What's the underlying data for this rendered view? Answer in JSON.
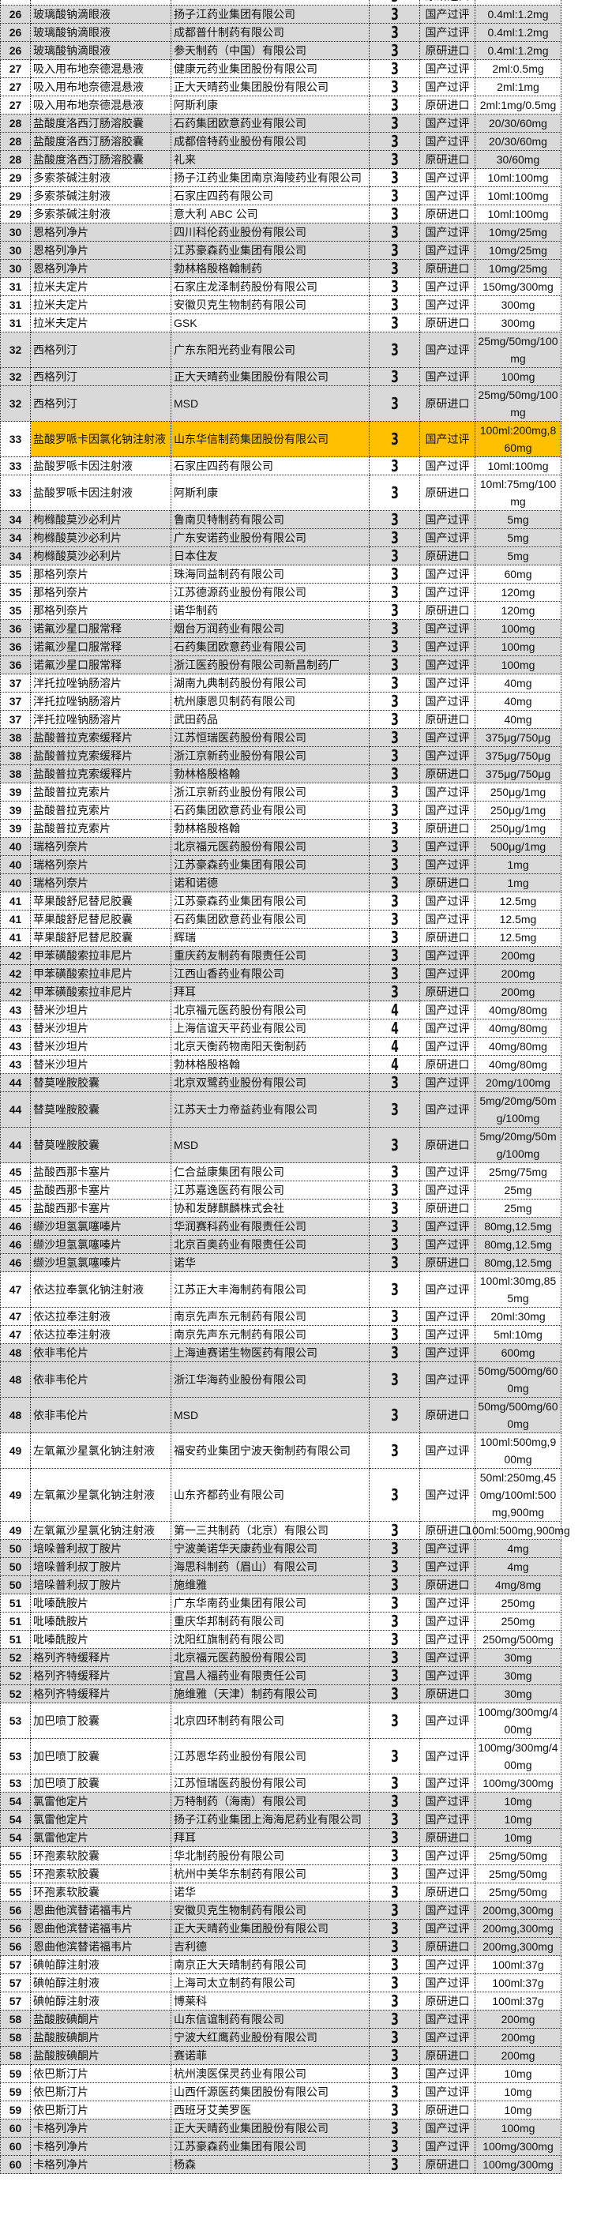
{
  "colors": {
    "gray_row": "#d9d9d9",
    "white_row": "#ffffff",
    "highlight": "#ffc000"
  },
  "rows": [
    {
      "num": "",
      "name": "",
      "company": "",
      "grade": "3",
      "type": "原研进口",
      "spec": ""
    },
    {
      "num": "26",
      "name": "玻璃酸钠滴眼液",
      "company": "扬子江药业集团有限公司",
      "grade": "3",
      "type": "国产过评",
      "spec": "0.4ml:1.2mg"
    },
    {
      "num": "26",
      "name": "玻璃酸钠滴眼液",
      "company": "成都普什制药有限公司",
      "grade": "3",
      "type": "国产过评",
      "spec": "0.4ml:1.2mg"
    },
    {
      "num": "26",
      "name": "玻璃酸钠滴眼液",
      "company": "参天制药（中国）有限公司",
      "grade": "3",
      "type": "原研进口",
      "spec": "0.4ml:1.2mg"
    },
    {
      "num": "27",
      "name": "吸入用布地奈德混悬液",
      "company": "健康元药业集团股份有限公司",
      "grade": "3",
      "type": "国产过评",
      "spec": "2ml:0.5mg"
    },
    {
      "num": "27",
      "name": "吸入用布地奈德混悬液",
      "company": "正大天晴药业集团股份有限公司",
      "grade": "3",
      "type": "国产过评",
      "spec": "2ml:1mg"
    },
    {
      "num": "27",
      "name": "吸入用布地奈德混悬液",
      "company": "阿斯利康",
      "grade": "3",
      "type": "原研进口",
      "spec": "2ml:1mg/0.5mg"
    },
    {
      "num": "28",
      "name": "盐酸度洛西汀肠溶胶囊",
      "company": "石药集团欧意药业有限公司",
      "grade": "3",
      "type": "国产过评",
      "spec": "20/30/60mg"
    },
    {
      "num": "28",
      "name": "盐酸度洛西汀肠溶胶囊",
      "company": "成都倍特药业股份有限公司",
      "grade": "3",
      "type": "国产过评",
      "spec": "20/30/60mg"
    },
    {
      "num": "28",
      "name": "盐酸度洛西汀肠溶胶囊",
      "company": "礼来",
      "grade": "3",
      "type": "原研进口",
      "spec": "30/60mg"
    },
    {
      "num": "29",
      "name": "多索茶碱注射液",
      "company": "扬子江药业集团南京海陵药业有限公司",
      "grade": "3",
      "type": "国产过评",
      "spec": "10ml:100mg"
    },
    {
      "num": "29",
      "name": "多索茶碱注射液",
      "company": "石家庄四药有限公司",
      "grade": "3",
      "type": "国产过评",
      "spec": "10ml:100mg"
    },
    {
      "num": "29",
      "name": "多索茶碱注射液",
      "company": "意大利 ABC 公司",
      "grade": "3",
      "type": "原研进口",
      "spec": "10ml:100mg"
    },
    {
      "num": "30",
      "name": "恩格列净片",
      "company": "四川科伦药业股份有限公司",
      "grade": "3",
      "type": "国产过评",
      "spec": "10mg/25mg"
    },
    {
      "num": "30",
      "name": "恩格列净片",
      "company": "江苏豪森药业集团有限公司",
      "grade": "3",
      "type": "国产过评",
      "spec": "10mg/25mg"
    },
    {
      "num": "30",
      "name": "恩格列净片",
      "company": "勃林格殷格翰制药",
      "grade": "3",
      "type": "原研进口",
      "spec": "10mg/25mg"
    },
    {
      "num": "31",
      "name": "拉米夫定片",
      "company": "石家庄龙泽制药股份有限公司",
      "grade": "3",
      "type": "国产过评",
      "spec": "150mg/300mg"
    },
    {
      "num": "31",
      "name": "拉米夫定片",
      "company": "安徽贝克生物制药有限公司",
      "grade": "3",
      "type": "国产过评",
      "spec": "300mg"
    },
    {
      "num": "31",
      "name": "拉米夫定片",
      "company": "GSK",
      "grade": "3",
      "type": "原研进口",
      "spec": "300mg"
    },
    {
      "num": "32",
      "name": "西格列汀",
      "company": "广东东阳光药业有限公司",
      "grade": "3",
      "type": "国产过评",
      "spec": "25mg/50mg/100mg"
    },
    {
      "num": "32",
      "name": "西格列汀",
      "company": "正大天晴药业集团股份有限公司",
      "grade": "3",
      "type": "国产过评",
      "spec": "100mg"
    },
    {
      "num": "32",
      "name": "西格列汀",
      "company": "MSD",
      "grade": "3",
      "type": "原研进口",
      "spec": "25mg/50mg/100mg"
    },
    {
      "num": "33",
      "name": "盐酸罗哌卡因氯化钠注射液",
      "company": "山东华信制药集团股份有限公司",
      "grade": "3",
      "type": "国产过评",
      "spec": "100ml:200mg,860mg",
      "highlight": true
    },
    {
      "num": "33",
      "name": "盐酸罗哌卡因注射液",
      "company": "石家庄四药有限公司",
      "grade": "3",
      "type": "国产过评",
      "spec": "10ml:100mg"
    },
    {
      "num": "33",
      "name": "盐酸罗哌卡因注射液",
      "company": "阿斯利康",
      "grade": "3",
      "type": "原研进口",
      "spec": "10ml:75mg/100mg"
    },
    {
      "num": "34",
      "name": "枸橼酸莫沙必利片",
      "company": "鲁南贝特制药有限公司",
      "grade": "3",
      "type": "国产过评",
      "spec": "5mg"
    },
    {
      "num": "34",
      "name": "枸橼酸莫沙必利片",
      "company": "广东安诺药业股份有限公司",
      "grade": "3",
      "type": "国产过评",
      "spec": "5mg"
    },
    {
      "num": "34",
      "name": "枸橼酸莫沙必利片",
      "company": "日本住友",
      "grade": "3",
      "type": "原研进口",
      "spec": "5mg"
    },
    {
      "num": "35",
      "name": "那格列奈片",
      "company": "珠海同益制药有限公司",
      "grade": "3",
      "type": "国产过评",
      "spec": "60mg"
    },
    {
      "num": "35",
      "name": "那格列奈片",
      "company": "江苏德源药业股份有限公司",
      "grade": "3",
      "type": "国产过评",
      "spec": "120mg"
    },
    {
      "num": "35",
      "name": "那格列奈片",
      "company": "诺华制药",
      "grade": "3",
      "type": "原研进口",
      "spec": "120mg"
    },
    {
      "num": "36",
      "name": "诺氟沙星口服常释",
      "company": "烟台万润药业有限公司",
      "grade": "3",
      "type": "国产过评",
      "spec": "100mg"
    },
    {
      "num": "36",
      "name": "诺氟沙星口服常释",
      "company": "石药集团欧意药业有限公司",
      "grade": "3",
      "type": "国产过评",
      "spec": "100mg"
    },
    {
      "num": "36",
      "name": "诺氟沙星口服常释",
      "company": "浙江医药股份有限公司新昌制药厂",
      "grade": "3",
      "type": "国产过评",
      "spec": "100mg"
    },
    {
      "num": "37",
      "name": "泮托拉唑钠肠溶片",
      "company": "湖南九典制药股份有限公司",
      "grade": "3",
      "type": "国产过评",
      "spec": "40mg"
    },
    {
      "num": "37",
      "name": "泮托拉唑钠肠溶片",
      "company": "杭州康恩贝制药有限公司",
      "grade": "3",
      "type": "国产过评",
      "spec": "40mg"
    },
    {
      "num": "37",
      "name": "泮托拉唑钠肠溶片",
      "company": "武田药品",
      "grade": "3",
      "type": "原研进口",
      "spec": "40mg"
    },
    {
      "num": "38",
      "name": "盐酸普拉克索缓释片",
      "company": "江苏恒瑞医药股份有限公司",
      "grade": "3",
      "type": "国产过评",
      "spec": "375μg/750μg"
    },
    {
      "num": "38",
      "name": "盐酸普拉克索缓释片",
      "company": "浙江京新药业股份有限公司",
      "grade": "3",
      "type": "国产过评",
      "spec": "375μg/750μg"
    },
    {
      "num": "38",
      "name": "盐酸普拉克索缓释片",
      "company": "勃林格殷格翰",
      "grade": "3",
      "type": "原研进口",
      "spec": "375μg/750μg"
    },
    {
      "num": "39",
      "name": "盐酸普拉克索片",
      "company": "浙江京新药业股份有限公司",
      "grade": "3",
      "type": "国产过评",
      "spec": "250μg/1mg"
    },
    {
      "num": "39",
      "name": "盐酸普拉克索片",
      "company": "石药集团欧意药业有限公司",
      "grade": "3",
      "type": "国产过评",
      "spec": "250μg/1mg"
    },
    {
      "num": "39",
      "name": "盐酸普拉克索片",
      "company": "勃林格殷格翰",
      "grade": "3",
      "type": "原研进口",
      "spec": "250μg/1mg"
    },
    {
      "num": "40",
      "name": "瑞格列奈片",
      "company": "北京福元医药股份有限公司",
      "grade": "3",
      "type": "国产过评",
      "spec": "500μg/1mg"
    },
    {
      "num": "40",
      "name": "瑞格列奈片",
      "company": "江苏豪森药业集团有限公司",
      "grade": "3",
      "type": "国产过评",
      "spec": "1mg"
    },
    {
      "num": "40",
      "name": "瑞格列奈片",
      "company": "诺和诺德",
      "grade": "3",
      "type": "原研进口",
      "spec": "1mg"
    },
    {
      "num": "41",
      "name": "苹果酸舒尼替尼胶囊",
      "company": "江苏豪森药业集团有限公司",
      "grade": "3",
      "type": "国产过评",
      "spec": "12.5mg"
    },
    {
      "num": "41",
      "name": "苹果酸舒尼替尼胶囊",
      "company": "石药集团欧意药业有限公司",
      "grade": "3",
      "type": "国产过评",
      "spec": "12.5mg"
    },
    {
      "num": "41",
      "name": "苹果酸舒尼替尼胶囊",
      "company": "辉瑞",
      "grade": "3",
      "type": "原研进口",
      "spec": "12.5mg"
    },
    {
      "num": "42",
      "name": "甲苯磺酸索拉非尼片",
      "company": "重庆药友制药有限责任公司",
      "grade": "3",
      "type": "国产过评",
      "spec": "200mg"
    },
    {
      "num": "42",
      "name": "甲苯磺酸索拉非尼片",
      "company": "江西山香药业有限公司",
      "grade": "3",
      "type": "国产过评",
      "spec": "200mg"
    },
    {
      "num": "42",
      "name": "甲苯磺酸索拉非尼片",
      "company": "拜耳",
      "grade": "3",
      "type": "原研进口",
      "spec": "200mg"
    },
    {
      "num": "43",
      "name": "替米沙坦片",
      "company": "北京福元医药股份有限公司",
      "grade": "4",
      "type": "国产过评",
      "spec": "40mg/80mg"
    },
    {
      "num": "43",
      "name": "替米沙坦片",
      "company": "上海信谊天平药业有限公司",
      "grade": "4",
      "type": "国产过评",
      "spec": "40mg/80mg"
    },
    {
      "num": "43",
      "name": "替米沙坦片",
      "company": "北京天衡药物南阳天衡制药",
      "grade": "4",
      "type": "国产过评",
      "spec": "40mg/80mg"
    },
    {
      "num": "43",
      "name": "替米沙坦片",
      "company": "勃林格殷格翰",
      "grade": "4",
      "type": "原研进口",
      "spec": "40mg/80mg"
    },
    {
      "num": "44",
      "name": "替莫唑胺胶囊",
      "company": "北京双鹭药业股份有限公司",
      "grade": "3",
      "type": "国产过评",
      "spec": "20mg/100mg"
    },
    {
      "num": "44",
      "name": "替莫唑胺胶囊",
      "company": "江苏天士力帝益药业有限公司",
      "grade": "3",
      "type": "国产过评",
      "spec": "5mg/20mg/50mg/100mg"
    },
    {
      "num": "44",
      "name": "替莫唑胺胶囊",
      "company": "MSD",
      "grade": "3",
      "type": "原研进口",
      "spec": "5mg/20mg/50mg/100mg"
    },
    {
      "num": "45",
      "name": "盐酸西那卡塞片",
      "company": "仁合益康集团有限公司",
      "grade": "3",
      "type": "国产过评",
      "spec": "25mg/75mg"
    },
    {
      "num": "45",
      "name": "盐酸西那卡塞片",
      "company": "江苏嘉逸医药有限公司",
      "grade": "3",
      "type": "国产过评",
      "spec": "25mg"
    },
    {
      "num": "45",
      "name": "盐酸西那卡塞片",
      "company": "协和发酵麒麟株式会社",
      "grade": "3",
      "type": "原研进口",
      "spec": "25mg"
    },
    {
      "num": "46",
      "name": "缬沙坦氢氯噻嗪片",
      "company": "华润赛科药业有限责任公司",
      "grade": "3",
      "type": "国产过评",
      "spec": "80mg,12.5mg"
    },
    {
      "num": "46",
      "name": "缬沙坦氢氯噻嗪片",
      "company": "北京百奥药业有限责任公司",
      "grade": "3",
      "type": "国产过评",
      "spec": "80mg,12.5mg"
    },
    {
      "num": "46",
      "name": "缬沙坦氢氯噻嗪片",
      "company": "诺华",
      "grade": "3",
      "type": "原研进口",
      "spec": "80mg,12.5mg"
    },
    {
      "num": "47",
      "name": "依达拉奉氯化钠注射液",
      "company": "江苏正大丰海制药有限公司",
      "grade": "3",
      "type": "国产过评",
      "spec": "100ml:30mg,855mg"
    },
    {
      "num": "47",
      "name": "依达拉奉注射液",
      "company": "南京先声东元制药有限公司",
      "grade": "3",
      "type": "国产过评",
      "spec": "20ml:30mg"
    },
    {
      "num": "47",
      "name": "依达拉奉注射液",
      "company": "南京先声东元制药有限公司",
      "grade": "3",
      "type": "国产过评",
      "spec": "5ml:10mg"
    },
    {
      "num": "48",
      "name": "依非韦伦片",
      "company": "上海迪赛诺生物医药有限公司",
      "grade": "3",
      "type": "国产过评",
      "spec": "600mg"
    },
    {
      "num": "48",
      "name": "依非韦伦片",
      "company": "浙江华海药业股份有限公司",
      "grade": "3",
      "type": "国产过评",
      "spec": "50mg/500mg/600mg"
    },
    {
      "num": "48",
      "name": "依非韦伦片",
      "company": "MSD",
      "grade": "3",
      "type": "原研进口",
      "spec": "50mg/500mg/600mg"
    },
    {
      "num": "49",
      "name": "左氧氟沙星氯化钠注射液",
      "company": "福安药业集团宁波天衡制药有限公司",
      "grade": "3",
      "type": "国产过评",
      "spec": "100ml:500mg,900mg"
    },
    {
      "num": "49",
      "name": "左氧氟沙星氯化钠注射液",
      "company": "山东齐都药业有限公司",
      "grade": "3",
      "type": "国产过评",
      "spec": "50ml:250mg,450mg/100ml:500mg,900mg"
    },
    {
      "num": "49",
      "name": "左氧氟沙星氯化钠注射液",
      "company": "第一三共制药（北京）有限公司",
      "grade": "3",
      "type": "原研进口",
      "spec": "100ml:500mg,900mg"
    },
    {
      "num": "50",
      "name": "培哚普利叔丁胺片",
      "company": "宁波美诺华天康药业有限公司",
      "grade": "3",
      "type": "国产过评",
      "spec": "4mg"
    },
    {
      "num": "50",
      "name": "培哚普利叔丁胺片",
      "company": "海思科制药（眉山）有限公司",
      "grade": "3",
      "type": "国产过评",
      "spec": "4mg"
    },
    {
      "num": "50",
      "name": "培哚普利叔丁胺片",
      "company": "施维雅",
      "grade": "3",
      "type": "原研进口",
      "spec": "4mg/8mg"
    },
    {
      "num": "51",
      "name": "吡嗪酰胺片",
      "company": "广东华南药业集团有限公司",
      "grade": "3",
      "type": "国产过评",
      "spec": "250mg"
    },
    {
      "num": "51",
      "name": "吡嗪酰胺片",
      "company": "重庆华邦制药有限公司",
      "grade": "3",
      "type": "国产过评",
      "spec": "250mg"
    },
    {
      "num": "51",
      "name": "吡嗪酰胺片",
      "company": "沈阳红旗制药有限公司",
      "grade": "3",
      "type": "国产过评",
      "spec": "250mg/500mg"
    },
    {
      "num": "52",
      "name": "格列齐特缓释片",
      "company": "北京福元医药股份有限公司",
      "grade": "3",
      "type": "国产过评",
      "spec": "30mg"
    },
    {
      "num": "52",
      "name": "格列齐特缓释片",
      "company": "宜昌人福药业有限责任公司",
      "grade": "3",
      "type": "国产过评",
      "spec": "30mg"
    },
    {
      "num": "52",
      "name": "格列齐特缓释片",
      "company": "施维雅（天津）制药有限公司",
      "grade": "3",
      "type": "原研进口",
      "spec": "30mg"
    },
    {
      "num": "53",
      "name": "加巴喷丁胶囊",
      "company": "北京四环制药有限公司",
      "grade": "3",
      "type": "国产过评",
      "spec": "100mg/300mg/400mg"
    },
    {
      "num": "53",
      "name": "加巴喷丁胶囊",
      "company": "江苏恩华药业股份有限公司",
      "grade": "3",
      "type": "国产过评",
      "spec": "100mg/300mg/400mg"
    },
    {
      "num": "53",
      "name": "加巴喷丁胶囊",
      "company": "江苏恒瑞医药股份有限公司",
      "grade": "3",
      "type": "国产过评",
      "spec": "100mg/300mg"
    },
    {
      "num": "54",
      "name": "氯雷他定片",
      "company": "万特制药（海南）有限公司",
      "grade": "3",
      "type": "国产过评",
      "spec": "10mg"
    },
    {
      "num": "54",
      "name": "氯雷他定片",
      "company": "扬子江药业集团上海海尼药业有限公司",
      "grade": "3",
      "type": "国产过评",
      "spec": "10mg"
    },
    {
      "num": "54",
      "name": "氯雷他定片",
      "company": "拜耳",
      "grade": "3",
      "type": "原研进口",
      "spec": "10mg"
    },
    {
      "num": "55",
      "name": "环孢素软胶囊",
      "company": "华北制药股份有限公司",
      "grade": "3",
      "type": "国产过评",
      "spec": "25mg/50mg"
    },
    {
      "num": "55",
      "name": "环孢素软胶囊",
      "company": "杭州中美华东制药有限公司",
      "grade": "3",
      "type": "国产过评",
      "spec": "25mg/50mg"
    },
    {
      "num": "55",
      "name": "环孢素软胶囊",
      "company": "诺华",
      "grade": "3",
      "type": "原研进口",
      "spec": "25mg/50mg"
    },
    {
      "num": "56",
      "name": "恩曲他滨替诺福韦片",
      "company": "安徽贝克生物制药有限公司",
      "grade": "3",
      "type": "国产过评",
      "spec": "200mg,300mg"
    },
    {
      "num": "56",
      "name": "恩曲他滨替诺福韦片",
      "company": "正大天晴药业集团股份有限公司",
      "grade": "3",
      "type": "国产过评",
      "spec": "200mg,300mg"
    },
    {
      "num": "56",
      "name": "恩曲他滨替诺福韦片",
      "company": "吉利德",
      "grade": "3",
      "type": "原研进口",
      "spec": "200mg,300mg"
    },
    {
      "num": "57",
      "name": "碘帕醇注射液",
      "company": "南京正大天晴制药有限公司",
      "grade": "3",
      "type": "国产过评",
      "spec": "100ml:37g"
    },
    {
      "num": "57",
      "name": "碘帕醇注射液",
      "company": "上海司太立制药有限公司",
      "grade": "3",
      "type": "国产过评",
      "spec": "100ml:37g"
    },
    {
      "num": "57",
      "name": "碘帕醇注射液",
      "company": "博莱科",
      "grade": "3",
      "type": "原研进口",
      "spec": "100ml:37g"
    },
    {
      "num": "58",
      "name": "盐酸胺碘酮片",
      "company": "山东信谊制药有限公司",
      "grade": "3",
      "type": "国产过评",
      "spec": "200mg"
    },
    {
      "num": "58",
      "name": "盐酸胺碘酮片",
      "company": "宁波大红鹰药业股份有限公司",
      "grade": "3",
      "type": "国产过评",
      "spec": "200mg"
    },
    {
      "num": "58",
      "name": "盐酸胺碘酮片",
      "company": "赛诺菲",
      "grade": "3",
      "type": "原研进口",
      "spec": "200mg"
    },
    {
      "num": "59",
      "name": "依巴斯汀片",
      "company": "杭州澳医保灵药业有限公司",
      "grade": "3",
      "type": "国产过评",
      "spec": "10mg"
    },
    {
      "num": "59",
      "name": "依巴斯汀片",
      "company": "山西仟源医药集团股份有限公司",
      "grade": "3",
      "type": "国产过评",
      "spec": "10mg"
    },
    {
      "num": "59",
      "name": "依巴斯汀片",
      "company": "西班牙艾美罗医",
      "grade": "3",
      "type": "原研进口",
      "spec": "10mg"
    },
    {
      "num": "60",
      "name": "卡格列净片",
      "company": "正大天晴药业集团股份有限公司",
      "grade": "3",
      "type": "国产过评",
      "spec": "100mg"
    },
    {
      "num": "60",
      "name": "卡格列净片",
      "company": "江苏豪森药业集团有限公司",
      "grade": "3",
      "type": "国产过评",
      "spec": "100mg/300mg"
    },
    {
      "num": "60",
      "name": "卡格列净片",
      "company": "杨森",
      "grade": "3",
      "type": "原研进口",
      "spec": "100mg/300mg"
    }
  ]
}
